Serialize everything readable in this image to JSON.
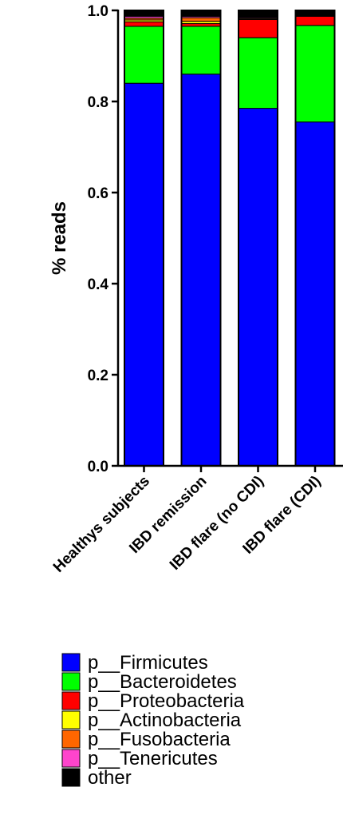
{
  "chart_data": {
    "type": "bar",
    "stacked": true,
    "title": "",
    "xlabel": "",
    "ylabel": "% reads",
    "ylim": [
      0,
      1.0
    ],
    "y_ticks": [
      0.0,
      0.2,
      0.4,
      0.6,
      0.8,
      1.0
    ],
    "y_tick_labels": [
      "0.0",
      "0.2",
      "0.4",
      "0.6",
      "0.8",
      "1.0"
    ],
    "categories": [
      "Healthys subjects",
      "IBD remission",
      "IBD flare (no CDI)",
      "IBD flare (CDI)"
    ],
    "legend_position": "bottom",
    "grid": false,
    "series": [
      {
        "name": "p__Firmicutes",
        "color": "#0000ff",
        "values": [
          0.84,
          0.86,
          0.785,
          0.755
        ]
      },
      {
        "name": "p__Bacteroidetes",
        "color": "#00ff00",
        "values": [
          0.125,
          0.105,
          0.155,
          0.212
        ]
      },
      {
        "name": "p__Proteobacteria",
        "color": "#ff0000",
        "values": [
          0.01,
          0.006,
          0.04,
          0.02
        ]
      },
      {
        "name": "p__Actinobacteria",
        "color": "#ffff00",
        "values": [
          0.004,
          0.005,
          0.002,
          0.001
        ]
      },
      {
        "name": "p__Fusobacteria",
        "color": "#ff6600",
        "values": [
          0.004,
          0.008,
          0.001,
          0.001
        ]
      },
      {
        "name": "p__Tenericutes",
        "color": "#ff44cc",
        "values": [
          0.004,
          0.003,
          0.002,
          0.001
        ]
      },
      {
        "name": "other",
        "color": "#000000",
        "values": [
          0.013,
          0.013,
          0.015,
          0.01
        ]
      }
    ]
  }
}
